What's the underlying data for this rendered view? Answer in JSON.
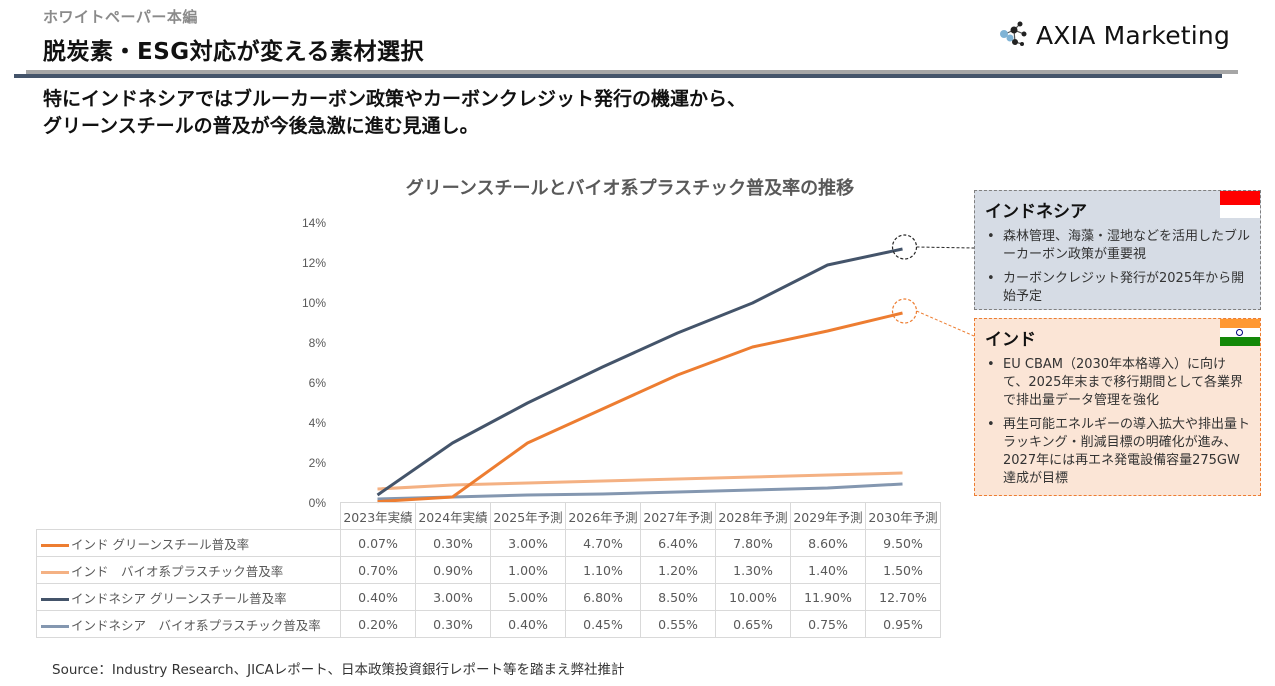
{
  "header": {
    "kicker": "ホワイトペーパー本編",
    "title": "脱炭素・ESG対応が変える素材選択",
    "brand": "AXIA Marketing",
    "brand_icon": "molecule-dots-icon"
  },
  "lead": {
    "line1": "特にインドネシアではブルーカーボン政策やカーボンクレジット発行の機運から、",
    "line2": "グリーンスチールの普及が今後急激に進む見通し。"
  },
  "chart_data": {
    "type": "line",
    "title": "グリーンスチールとバイオ系プラスチック普及率の推移",
    "xlabel": "",
    "ylabel": "",
    "ylim": [
      0,
      14
    ],
    "yticks": [
      "0%",
      "2%",
      "4%",
      "6%",
      "8%",
      "10%",
      "12%",
      "14%"
    ],
    "grid": false,
    "legend": "data-table-below",
    "categories": [
      "2023年実績",
      "2024年実績",
      "2025年予測",
      "2026年予測",
      "2027年予測",
      "2028年予測",
      "2029年予測",
      "2030年予測"
    ],
    "series": [
      {
        "name": "インド グリーンスチール普及率",
        "color": "#ed7d31",
        "values": [
          0.07,
          0.3,
          3.0,
          4.7,
          6.4,
          7.8,
          8.6,
          9.5
        ],
        "labels": [
          "0.07%",
          "0.30%",
          "3.00%",
          "4.70%",
          "6.40%",
          "7.80%",
          "8.60%",
          "9.50%"
        ]
      },
      {
        "name": "インド　バイオ系プラスチック普及率",
        "color": "#f4b183",
        "values": [
          0.7,
          0.9,
          1.0,
          1.1,
          1.2,
          1.3,
          1.4,
          1.5
        ],
        "labels": [
          "0.70%",
          "0.90%",
          "1.00%",
          "1.10%",
          "1.20%",
          "1.30%",
          "1.40%",
          "1.50%"
        ]
      },
      {
        "name": "インドネシア グリーンスチール普及率",
        "color": "#44546a",
        "values": [
          0.4,
          3.0,
          5.0,
          6.8,
          8.5,
          10.0,
          11.9,
          12.7
        ],
        "labels": [
          "0.40%",
          "3.00%",
          "5.00%",
          "6.80%",
          "8.50%",
          "10.00%",
          "11.90%",
          "12.70%"
        ]
      },
      {
        "name": "インドネシア　バイオ系プラスチック普及率",
        "color": "#8497b0",
        "values": [
          0.2,
          0.3,
          0.4,
          0.45,
          0.55,
          0.65,
          0.75,
          0.95
        ],
        "labels": [
          "0.20%",
          "0.30%",
          "0.40%",
          "0.45%",
          "0.55%",
          "0.65%",
          "0.75%",
          "0.95%"
        ]
      }
    ],
    "annotations": [
      {
        "target_series": 2,
        "target_category": "2030年予測",
        "style": "dashed-circle",
        "color": "#262626",
        "links_to": "indonesia"
      },
      {
        "target_series": 0,
        "target_category": "2030年予測",
        "style": "dashed-circle",
        "color": "#ed7d31",
        "links_to": "india"
      }
    ]
  },
  "callouts": {
    "indonesia": {
      "title": "インドネシア",
      "flag": "indonesia-flag-icon",
      "bullets": [
        "森林管理、海藻・湿地などを活用したブルーカーボン政策が重要視",
        "カーボンクレジット発行が2025年から開始予定"
      ]
    },
    "india": {
      "title": "インド",
      "flag": "india-flag-icon",
      "bullets": [
        "EU CBAM（2030年本格導入）に向けて、2025年末まで移行期間として各業界で排出量データ管理を強化",
        "再生可能エネルギーの導入拡大や排出量トラッキング・削減目標の明確化が進み、2027年には再エネ発電設備容量275GW達成が目標"
      ]
    }
  },
  "footer": {
    "source": "Source：Industry Research、JICAレポート、日本政策投資銀行レポート等を踏まえ弊社推計"
  }
}
